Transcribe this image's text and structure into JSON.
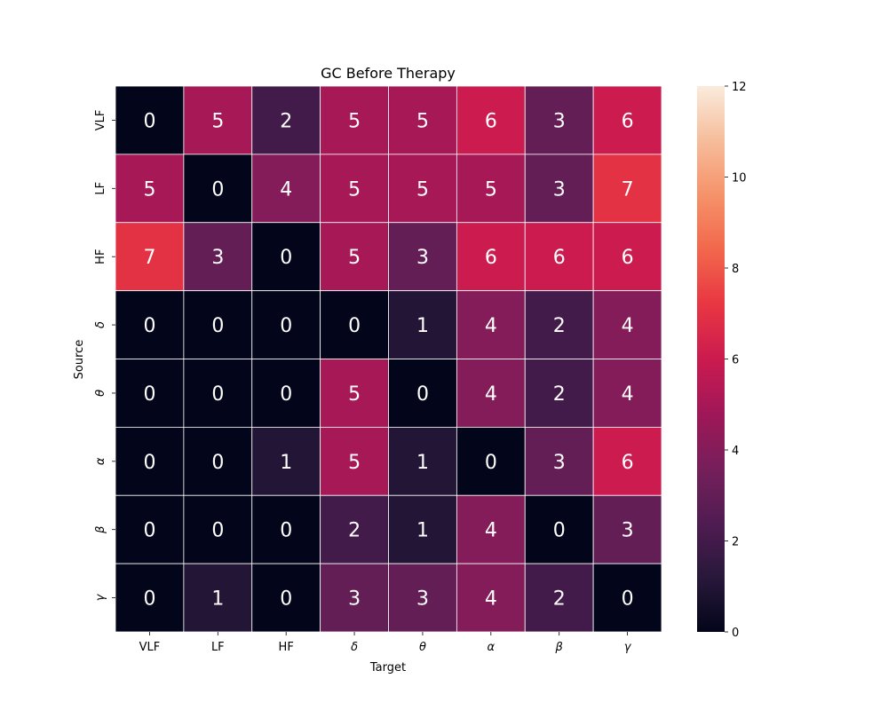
{
  "chart_data": {
    "type": "heatmap",
    "title": "GC Before Therapy",
    "xlabel": "Target",
    "ylabel": "Source",
    "x_labels": [
      "VLF",
      "LF",
      "HF",
      "δ",
      "θ",
      "α",
      "β",
      "γ"
    ],
    "y_labels": [
      "VLF",
      "LF",
      "HF",
      "δ",
      "θ",
      "α",
      "β",
      "γ"
    ],
    "values": [
      [
        0,
        5,
        2,
        5,
        5,
        6,
        3,
        6
      ],
      [
        5,
        0,
        4,
        5,
        5,
        5,
        3,
        7
      ],
      [
        7,
        3,
        0,
        5,
        3,
        6,
        6,
        6
      ],
      [
        0,
        0,
        0,
        0,
        1,
        4,
        2,
        4
      ],
      [
        0,
        0,
        0,
        5,
        0,
        4,
        2,
        4
      ],
      [
        0,
        0,
        1,
        5,
        1,
        0,
        3,
        6
      ],
      [
        0,
        0,
        0,
        2,
        1,
        4,
        0,
        3
      ],
      [
        0,
        1,
        0,
        3,
        3,
        4,
        2,
        0
      ]
    ],
    "vmin": 0,
    "vmax": 12,
    "colorbar_ticks": [
      0,
      2,
      4,
      6,
      8,
      10,
      12
    ],
    "colormap": "rocket",
    "gridline_color": "#ffffff"
  }
}
